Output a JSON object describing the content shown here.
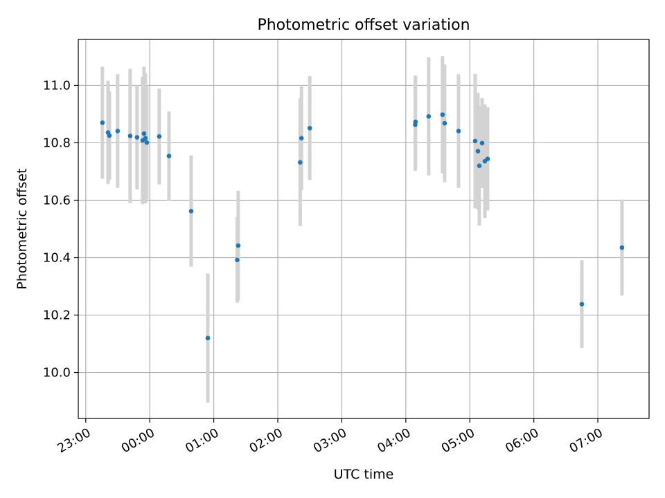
{
  "chart_data": {
    "type": "scatter",
    "title": "Photometric offset variation",
    "xlabel": "UTC time",
    "ylabel": "Photometric offset",
    "x_unit": "minutes from 23:00 UTC",
    "xlim": [
      -7,
      528
    ],
    "ylim": [
      9.84,
      11.16
    ],
    "grid": true,
    "x_ticks": [
      {
        "value": 0,
        "label": "23:00"
      },
      {
        "value": 60,
        "label": "00:00"
      },
      {
        "value": 120,
        "label": "01:00"
      },
      {
        "value": 180,
        "label": "02:00"
      },
      {
        "value": 240,
        "label": "03:00"
      },
      {
        "value": 300,
        "label": "04:00"
      },
      {
        "value": 360,
        "label": "05:00"
      },
      {
        "value": 420,
        "label": "06:00"
      },
      {
        "value": 480,
        "label": "07:00"
      }
    ],
    "y_ticks": [
      {
        "value": 10.0,
        "label": "10.0"
      },
      {
        "value": 10.2,
        "label": "10.2"
      },
      {
        "value": 10.4,
        "label": "10.4"
      },
      {
        "value": 10.6,
        "label": "10.6"
      },
      {
        "value": 10.8,
        "label": "10.8"
      },
      {
        "value": 11.0,
        "label": "11.0"
      }
    ],
    "series": [
      {
        "marker_color": "#1f77b4",
        "errorbar_color": "#d3d3d3",
        "points": [
          {
            "x": 15.6,
            "y": 10.87,
            "err": 0.195
          },
          {
            "x": 20.9,
            "y": 10.836,
            "err": 0.18
          },
          {
            "x": 22.2,
            "y": 10.825,
            "err": 0.155
          },
          {
            "x": 29.9,
            "y": 10.841,
            "err": 0.198
          },
          {
            "x": 41.6,
            "y": 10.824,
            "err": 0.234
          },
          {
            "x": 48.1,
            "y": 10.819,
            "err": 0.181
          },
          {
            "x": 53.3,
            "y": 10.808,
            "err": 0.222
          },
          {
            "x": 54.6,
            "y": 10.832,
            "err": 0.233
          },
          {
            "x": 55.9,
            "y": 10.816,
            "err": 0.227
          },
          {
            "x": 57.2,
            "y": 10.801,
            "err": 0.198
          },
          {
            "x": 68.9,
            "y": 10.822,
            "err": 0.167
          },
          {
            "x": 78.0,
            "y": 10.754,
            "err": 0.155
          },
          {
            "x": 98.8,
            "y": 10.562,
            "err": 0.194
          },
          {
            "x": 114.4,
            "y": 10.12,
            "err": 0.225
          },
          {
            "x": 142.0,
            "y": 10.392,
            "err": 0.149
          },
          {
            "x": 142.9,
            "y": 10.442,
            "err": 0.191
          },
          {
            "x": 201.0,
            "y": 10.732,
            "err": 0.222
          },
          {
            "x": 202.2,
            "y": 10.816,
            "err": 0.18
          },
          {
            "x": 210.0,
            "y": 10.851,
            "err": 0.181
          },
          {
            "x": 308.8,
            "y": 10.863,
            "err": 0.161
          },
          {
            "x": 309.1,
            "y": 10.873,
            "err": 0.161
          },
          {
            "x": 321.4,
            "y": 10.892,
            "err": 0.206
          },
          {
            "x": 334.4,
            "y": 10.898,
            "err": 0.204
          },
          {
            "x": 336.4,
            "y": 10.868,
            "err": 0.205
          },
          {
            "x": 349.4,
            "y": 10.841,
            "err": 0.198
          },
          {
            "x": 365.0,
            "y": 10.806,
            "err": 0.234
          },
          {
            "x": 367.6,
            "y": 10.771,
            "err": 0.203
          },
          {
            "x": 368.9,
            "y": 10.72,
            "err": 0.208
          },
          {
            "x": 371.5,
            "y": 10.799,
            "err": 0.157
          },
          {
            "x": 374.1,
            "y": 10.736,
            "err": 0.198
          },
          {
            "x": 376.7,
            "y": 10.744,
            "err": 0.18
          },
          {
            "x": 465.0,
            "y": 10.238,
            "err": 0.153
          },
          {
            "x": 502.6,
            "y": 10.435,
            "err": 0.167
          }
        ]
      }
    ]
  }
}
